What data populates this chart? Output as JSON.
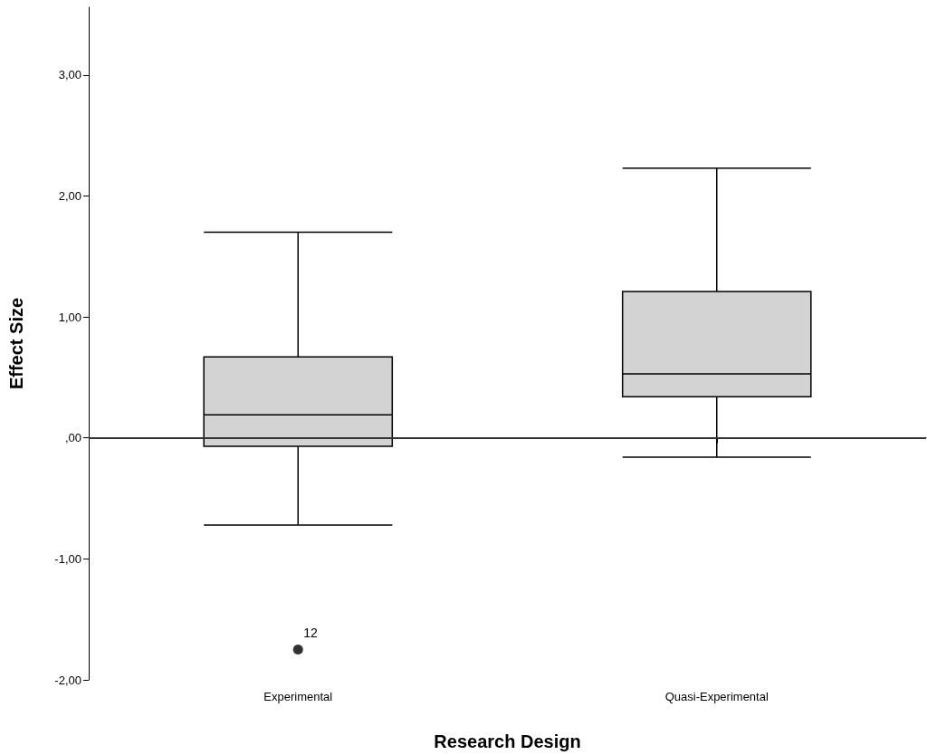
{
  "chart_data": {
    "type": "box",
    "xlabel": "Research Design",
    "ylabel": "Effect Size",
    "categories": [
      "Experimental",
      "Quasi-Experimental"
    ],
    "boxes": [
      {
        "low": -0.72,
        "q1": -0.07,
        "median": 0.19,
        "q3": 0.67,
        "high": 1.7,
        "outliers": [
          -1.75
        ]
      },
      {
        "low": -0.16,
        "q1": 0.34,
        "median": 0.53,
        "q3": 1.21,
        "high": 2.23
      }
    ],
    "color": "#d3d3d3",
    "ylim": [
      -2,
      3.56
    ],
    "yticks": [
      {
        "value": -2,
        "label": "-2,00"
      },
      {
        "value": -1,
        "label": "-1,00"
      },
      {
        "value": 0,
        "label": ",00"
      },
      {
        "value": 1,
        "label": "1,00"
      },
      {
        "value": 2,
        "label": "2,00"
      },
      {
        "value": 3,
        "label": "3,00"
      }
    ],
    "ref_lines": [
      {
        "axis": "y",
        "value": 0,
        "label": null,
        "color": "#333333"
      }
    ],
    "annotations": [
      "12"
    ],
    "grid": false
  }
}
